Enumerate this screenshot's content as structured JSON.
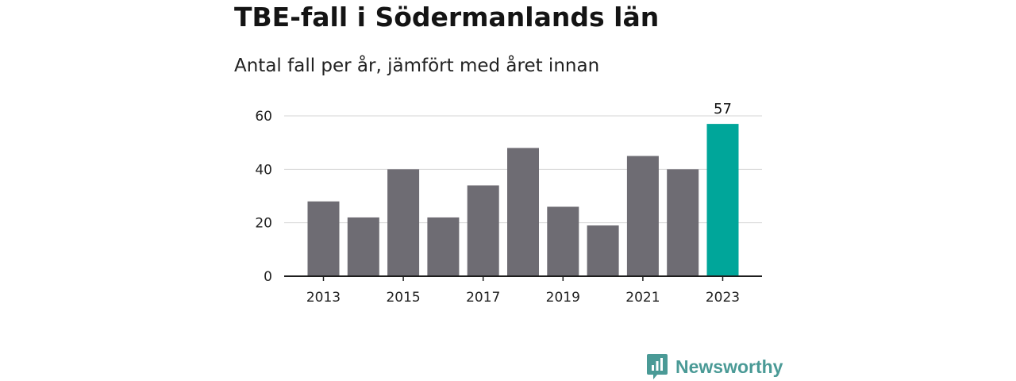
{
  "chart_data": {
    "type": "bar",
    "title": "TBE-fall i Södermanlands län",
    "subtitle": "Antal fall per år, jämfört med året innan",
    "categories": [
      2013,
      2014,
      2015,
      2016,
      2017,
      2018,
      2019,
      2020,
      2021,
      2022,
      2023
    ],
    "values": [
      28,
      22,
      40,
      22,
      34,
      48,
      26,
      19,
      45,
      40,
      57
    ],
    "x_tick_labels": [
      "2013",
      "2015",
      "2017",
      "2019",
      "2021",
      "2023"
    ],
    "y_ticks": [
      0,
      20,
      40,
      60
    ],
    "ylim": [
      0,
      60
    ],
    "grid": true,
    "highlight": {
      "category": 2023,
      "label": "57"
    },
    "xlabel": "",
    "ylabel": "",
    "colors": {
      "bar": "#6e6c73",
      "highlight": "#00a69a",
      "grid": "#d6d6d6",
      "axis": "#1e1e1e"
    }
  },
  "brand": {
    "name": "Newsworthy",
    "icon": "newsworthy-logo-icon",
    "color": "#4a9a96"
  }
}
